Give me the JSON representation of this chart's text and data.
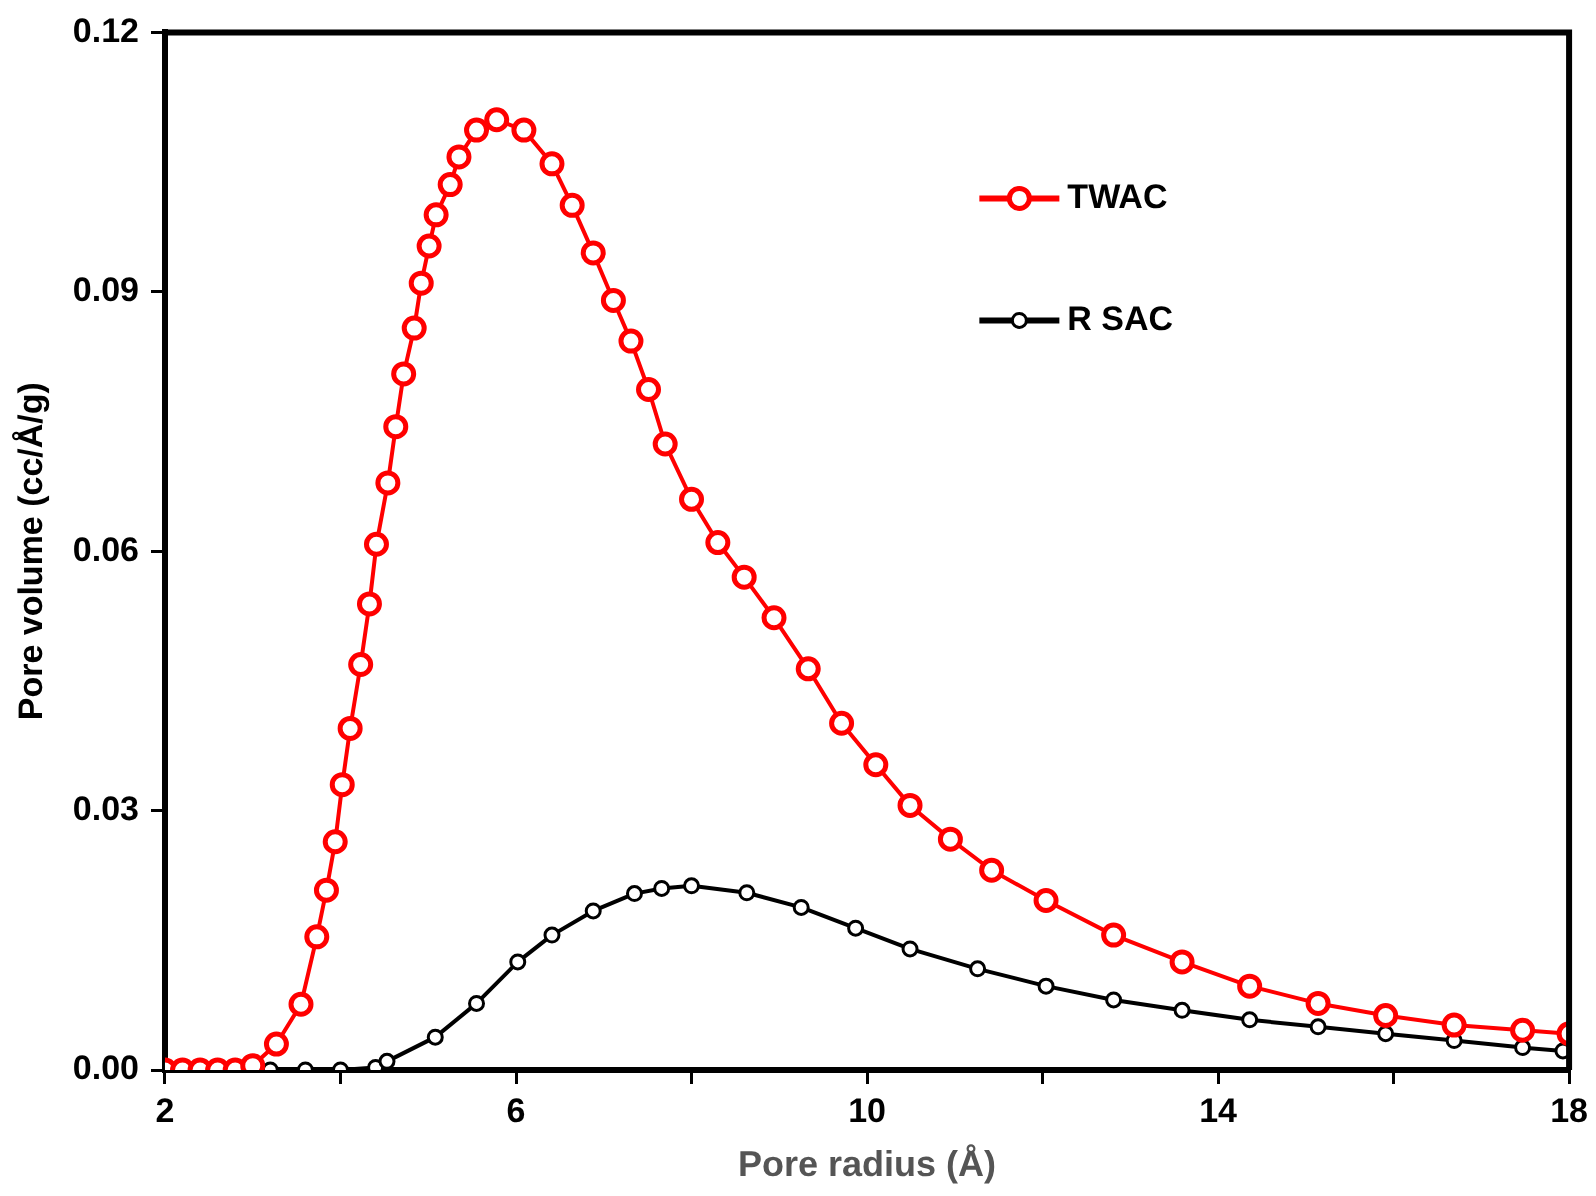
{
  "chart_data": {
    "type": "line",
    "xlabel": "Pore radius (Å)",
    "ylabel": "Pore volume (cc/Å/g)",
    "xlim": [
      2,
      18
    ],
    "ylim": [
      0,
      0.12
    ],
    "xticks": [
      2,
      {
        "value": 4,
        "label": null
      },
      6,
      {
        "value": 8,
        "label": null
      },
      10,
      {
        "value": 12,
        "label": null
      },
      14,
      {
        "value": 16,
        "label": null
      },
      18
    ],
    "yticks": [
      {
        "value": 0,
        "label": "0.00"
      },
      0.03,
      0.06,
      0.09,
      {
        "value": 0.12,
        "label": "0.12"
      }
    ],
    "grid": false,
    "legend": "top right",
    "marker": "circle",
    "line_style": "solid",
    "series": [
      {
        "name": "TWAC",
        "color": "#ff0000",
        "x": [
          2,
          2.2,
          2.4,
          2.6,
          2.8,
          3,
          3.27,
          3.55,
          3.73,
          3.84,
          3.94,
          4.02,
          4.11,
          4.23,
          4.33,
          4.41,
          4.54,
          4.63,
          4.72,
          4.84,
          4.92,
          5.01,
          5.09,
          5.25,
          5.35,
          5.55,
          5.78,
          6.09,
          6.41,
          6.64,
          6.88,
          7.11,
          7.31,
          7.51,
          7.7,
          8,
          8.3,
          8.6,
          8.94,
          9.33,
          9.71,
          10.1,
          10.49,
          10.95,
          11.42,
          12.04,
          12.81,
          13.59,
          14.36,
          15.14,
          15.91,
          16.69,
          17.47,
          18
        ],
        "values": [
          0,
          0,
          0,
          0,
          0,
          0.0005,
          0.003,
          0.0076,
          0.0154,
          0.0208,
          0.0264,
          0.033,
          0.0395,
          0.0469,
          0.0539,
          0.0608,
          0.0679,
          0.0744,
          0.0805,
          0.0858,
          0.091,
          0.0953,
          0.0989,
          0.1024,
          0.1056,
          0.1087,
          0.1099,
          0.1087,
          0.1048,
          0.1,
          0.0945,
          0.089,
          0.0843,
          0.0787,
          0.0724,
          0.066,
          0.061,
          0.057,
          0.0523,
          0.0464,
          0.0401,
          0.0353,
          0.0306,
          0.0267,
          0.0231,
          0.0196,
          0.0156,
          0.0125,
          0.0097,
          0.0077,
          0.0063,
          0.0052,
          0.0046,
          0.0042
        ]
      },
      {
        "name": "R SAC",
        "color": "#000000",
        "x": [
          2.8,
          3.2,
          3.6,
          4,
          4.4,
          4.53,
          5.08,
          5.55,
          6.02,
          6.41,
          6.88,
          7.35,
          7.66,
          8,
          8.63,
          9.25,
          9.87,
          10.49,
          11.26,
          12.04,
          12.81,
          13.59,
          14.36,
          15.14,
          15.91,
          16.69,
          17.47,
          17.93
        ],
        "values": [
          0,
          0,
          0,
          0,
          0.0003,
          0.001,
          0.0038,
          0.0077,
          0.0125,
          0.0156,
          0.0184,
          0.0204,
          0.021,
          0.0213,
          0.0205,
          0.0188,
          0.0164,
          0.014,
          0.0117,
          0.0097,
          0.0081,
          0.0069,
          0.0058,
          0.005,
          0.0042,
          0.0034,
          0.0026,
          0.0022
        ]
      }
    ]
  }
}
